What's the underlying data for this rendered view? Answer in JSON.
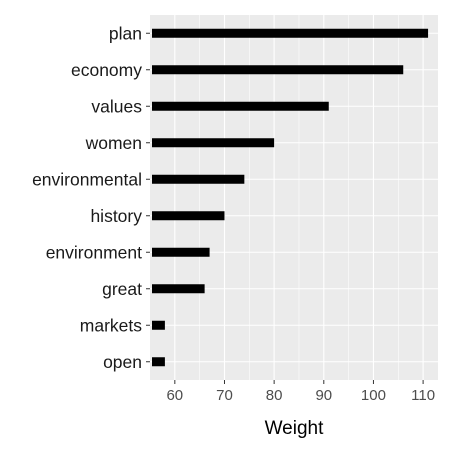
{
  "chart_data": {
    "type": "bar",
    "orientation": "horizontal",
    "categories": [
      "plan",
      "economy",
      "values",
      "women",
      "environmental",
      "history",
      "environment",
      "great",
      "markets",
      "open"
    ],
    "values": [
      111,
      106,
      91,
      80,
      74,
      70,
      67,
      66,
      58,
      58
    ],
    "xlabel": "Weight",
    "ylabel": "",
    "xlim": [
      55,
      113
    ],
    "x_ticks": [
      60,
      70,
      80,
      90,
      100,
      110
    ],
    "grid": true,
    "legend": "none",
    "colors": {
      "bar": "#000000",
      "panel": "#ebebeb",
      "grid": "#ffffff"
    }
  }
}
